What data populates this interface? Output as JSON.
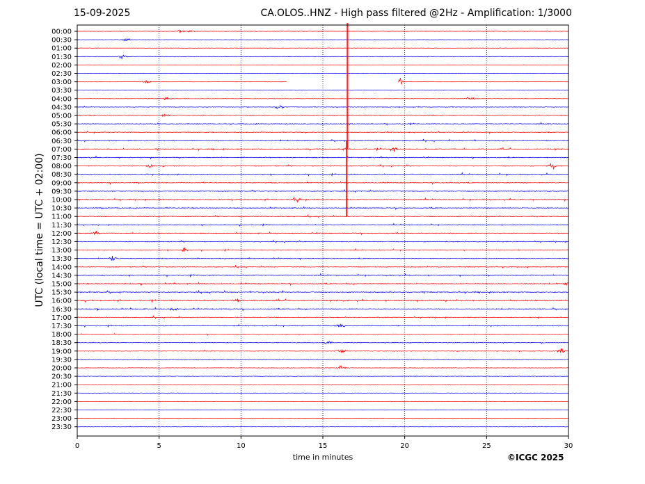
{
  "header": {
    "date": "15-09-2025",
    "title": "CA.OLOS..HNZ - High pass filtered @2Hz - Amplification: 1/3000"
  },
  "footer": {
    "copyright": "©ICGC 2025"
  },
  "chart_data": {
    "type": "line",
    "title": "CA.OLOS..HNZ - High pass filtered @2Hz - Amplification: 1/3000",
    "xlabel": "time in minutes",
    "ylabel": "UTC (local time = UTC + 02:00)",
    "xlim": [
      0,
      30
    ],
    "x_ticks": [
      "0",
      "5",
      "10",
      "15",
      "20",
      "25",
      "30"
    ],
    "x_tick_values": [
      0,
      5,
      10,
      15,
      20,
      25,
      30
    ],
    "grid": "vertical dotted lines at 5-minute intervals",
    "colors": {
      "odd_rows": "#ff0000",
      "even_rows": "#0000ff",
      "grid": "#000066"
    },
    "rows": [
      "00:00",
      "00:30",
      "01:00",
      "01:30",
      "02:00",
      "02:30",
      "03:00",
      "03:30",
      "04:00",
      "04:30",
      "05:00",
      "05:30",
      "06:00",
      "06:30",
      "07:00",
      "07:30",
      "08:00",
      "08:30",
      "09:00",
      "09:30",
      "10:00",
      "10:30",
      "11:00",
      "11:30",
      "12:00",
      "12:30",
      "13:00",
      "13:30",
      "14:00",
      "14:30",
      "15:00",
      "15:30",
      "16:00",
      "16:30",
      "17:00",
      "17:30",
      "18:00",
      "18:30",
      "19:00",
      "19:30",
      "20:00",
      "20:30",
      "21:00",
      "21:30",
      "22:00",
      "22:30",
      "23:00",
      "23:30"
    ],
    "row_colors": [
      "red",
      "blue",
      "red",
      "blue",
      "red",
      "blue",
      "red",
      "blue",
      "red",
      "blue",
      "red",
      "blue",
      "red",
      "blue",
      "red",
      "blue",
      "red",
      "blue",
      "red",
      "blue",
      "red",
      "blue",
      "red",
      "blue",
      "red",
      "blue",
      "red",
      "blue",
      "red",
      "blue",
      "red",
      "blue",
      "red",
      "blue",
      "red",
      "blue",
      "red",
      "blue",
      "red",
      "blue",
      "red",
      "blue",
      "red",
      "blue",
      "red",
      "blue",
      "red",
      "blue"
    ],
    "activity_level": [
      0.05,
      0.03,
      0.03,
      0.03,
      0.02,
      0.03,
      0.05,
      0.05,
      0.1,
      0.3,
      0.4,
      0.5,
      0.5,
      0.7,
      0.8,
      0.6,
      0.6,
      0.6,
      0.6,
      0.6,
      0.7,
      0.6,
      0.6,
      0.5,
      0.6,
      0.6,
      0.5,
      0.5,
      0.6,
      0.6,
      0.7,
      0.8,
      0.8,
      0.7,
      0.6,
      0.5,
      0.4,
      0.35,
      0.3,
      0.3,
      0.2,
      0.1,
      0.08,
      0.04,
      0.05,
      0.03,
      0.03,
      0.02
    ],
    "events": [
      {
        "row": "00:00",
        "minute": 6.3,
        "amp": 0.3
      },
      {
        "row": "00:00",
        "minute": 6.9,
        "amp": 0.2
      },
      {
        "row": "00:30",
        "minute": 3.0,
        "amp": 0.35
      },
      {
        "row": "01:30",
        "minute": 2.8,
        "amp": 0.7
      },
      {
        "row": "03:00",
        "minute": 4.2,
        "amp": 0.4
      },
      {
        "row": "03:00",
        "minute": 19.7,
        "amp": 0.8
      },
      {
        "row": "04:00",
        "minute": 5.5,
        "amp": 0.5
      },
      {
        "row": "04:00",
        "minute": 24.0,
        "amp": 0.4
      },
      {
        "row": "04:30",
        "minute": 12.3,
        "amp": 0.6
      },
      {
        "row": "05:00",
        "minute": 5.4,
        "amp": 0.6
      },
      {
        "row": "07:00",
        "minute": 19.3,
        "amp": 0.6
      },
      {
        "row": "08:00",
        "minute": 4.5,
        "amp": 0.5
      },
      {
        "row": "08:00",
        "minute": 29.0,
        "amp": 0.7
      },
      {
        "row": "10:00",
        "minute": 13.4,
        "amp": 0.7
      },
      {
        "row": "12:00",
        "minute": 1.1,
        "amp": 0.6
      },
      {
        "row": "13:00",
        "minute": 6.5,
        "amp": 0.5
      },
      {
        "row": "13:30",
        "minute": 2.2,
        "amp": 0.5
      },
      {
        "row": "15:00",
        "minute": 30.0,
        "amp": 0.5
      },
      {
        "row": "16:00",
        "minute": 9.9,
        "amp": 0.6
      },
      {
        "row": "16:30",
        "minute": 5.9,
        "amp": 0.6
      },
      {
        "row": "17:30",
        "minute": 16.1,
        "amp": 0.5
      },
      {
        "row": "18:30",
        "minute": 15.3,
        "amp": 0.4
      },
      {
        "row": "19:00",
        "minute": 16.1,
        "amp": 0.6
      },
      {
        "row": "19:00",
        "minute": 29.5,
        "amp": 0.6
      },
      {
        "row": "20:00",
        "minute": 16.1,
        "amp": 0.5
      }
    ],
    "spikes": [
      {
        "from_row": "00:00",
        "to_row": "07:00",
        "minute": 16.5,
        "color": "red"
      },
      {
        "from_row": "07:00",
        "to_row": "11:00",
        "minute": 16.45,
        "color": "red"
      }
    ],
    "gap": {
      "row": "03:00",
      "from_minute": 12.8,
      "to_minute": 19.6
    }
  }
}
